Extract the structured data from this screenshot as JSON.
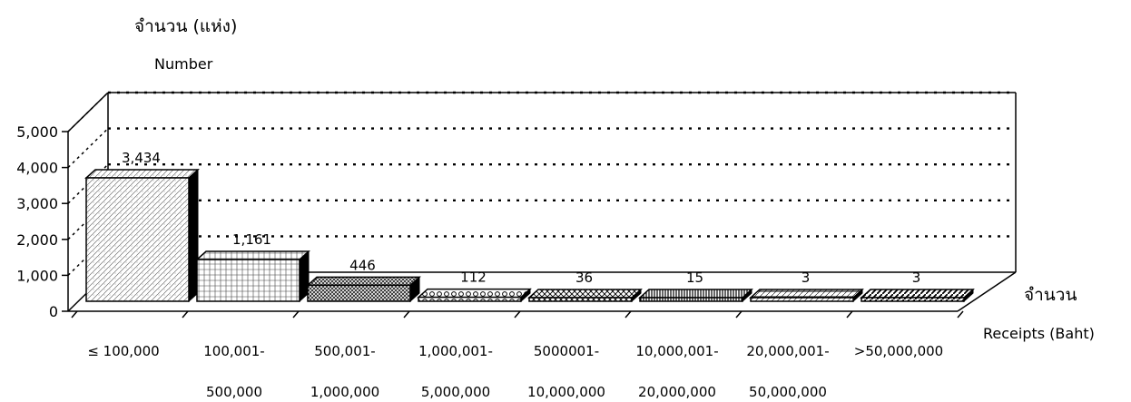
{
  "chart_data": {
    "type": "bar",
    "ylabel_thai": "จำนวน (แห่ง)",
    "ylabel_en": "Number",
    "xlabel_thai": "จำนวน",
    "xlabel_en": "Receipts (Baht)",
    "ylim": [
      0,
      5000
    ],
    "yticks": [
      "0",
      "1,000",
      "2,000",
      "3,000",
      "4,000",
      "5,000"
    ],
    "grid": true,
    "categories": [
      [
        "≤ 100,000",
        ""
      ],
      [
        "100,001-",
        "500,000"
      ],
      [
        "500,001-",
        "1,000,000"
      ],
      [
        "1,000,001-",
        "5,000,000"
      ],
      [
        "5000001-",
        "10,000,000"
      ],
      [
        "10,000,001-",
        "20,000,000"
      ],
      [
        "20,000,001-",
        "50,000,000"
      ],
      [
        ">50,000,000",
        ""
      ]
    ],
    "values": [
      3434,
      1161,
      446,
      112,
      36,
      15,
      3,
      3
    ],
    "value_labels": [
      "3,434",
      "1,161",
      "446",
      "112",
      "36",
      "15",
      "3",
      "3"
    ]
  }
}
